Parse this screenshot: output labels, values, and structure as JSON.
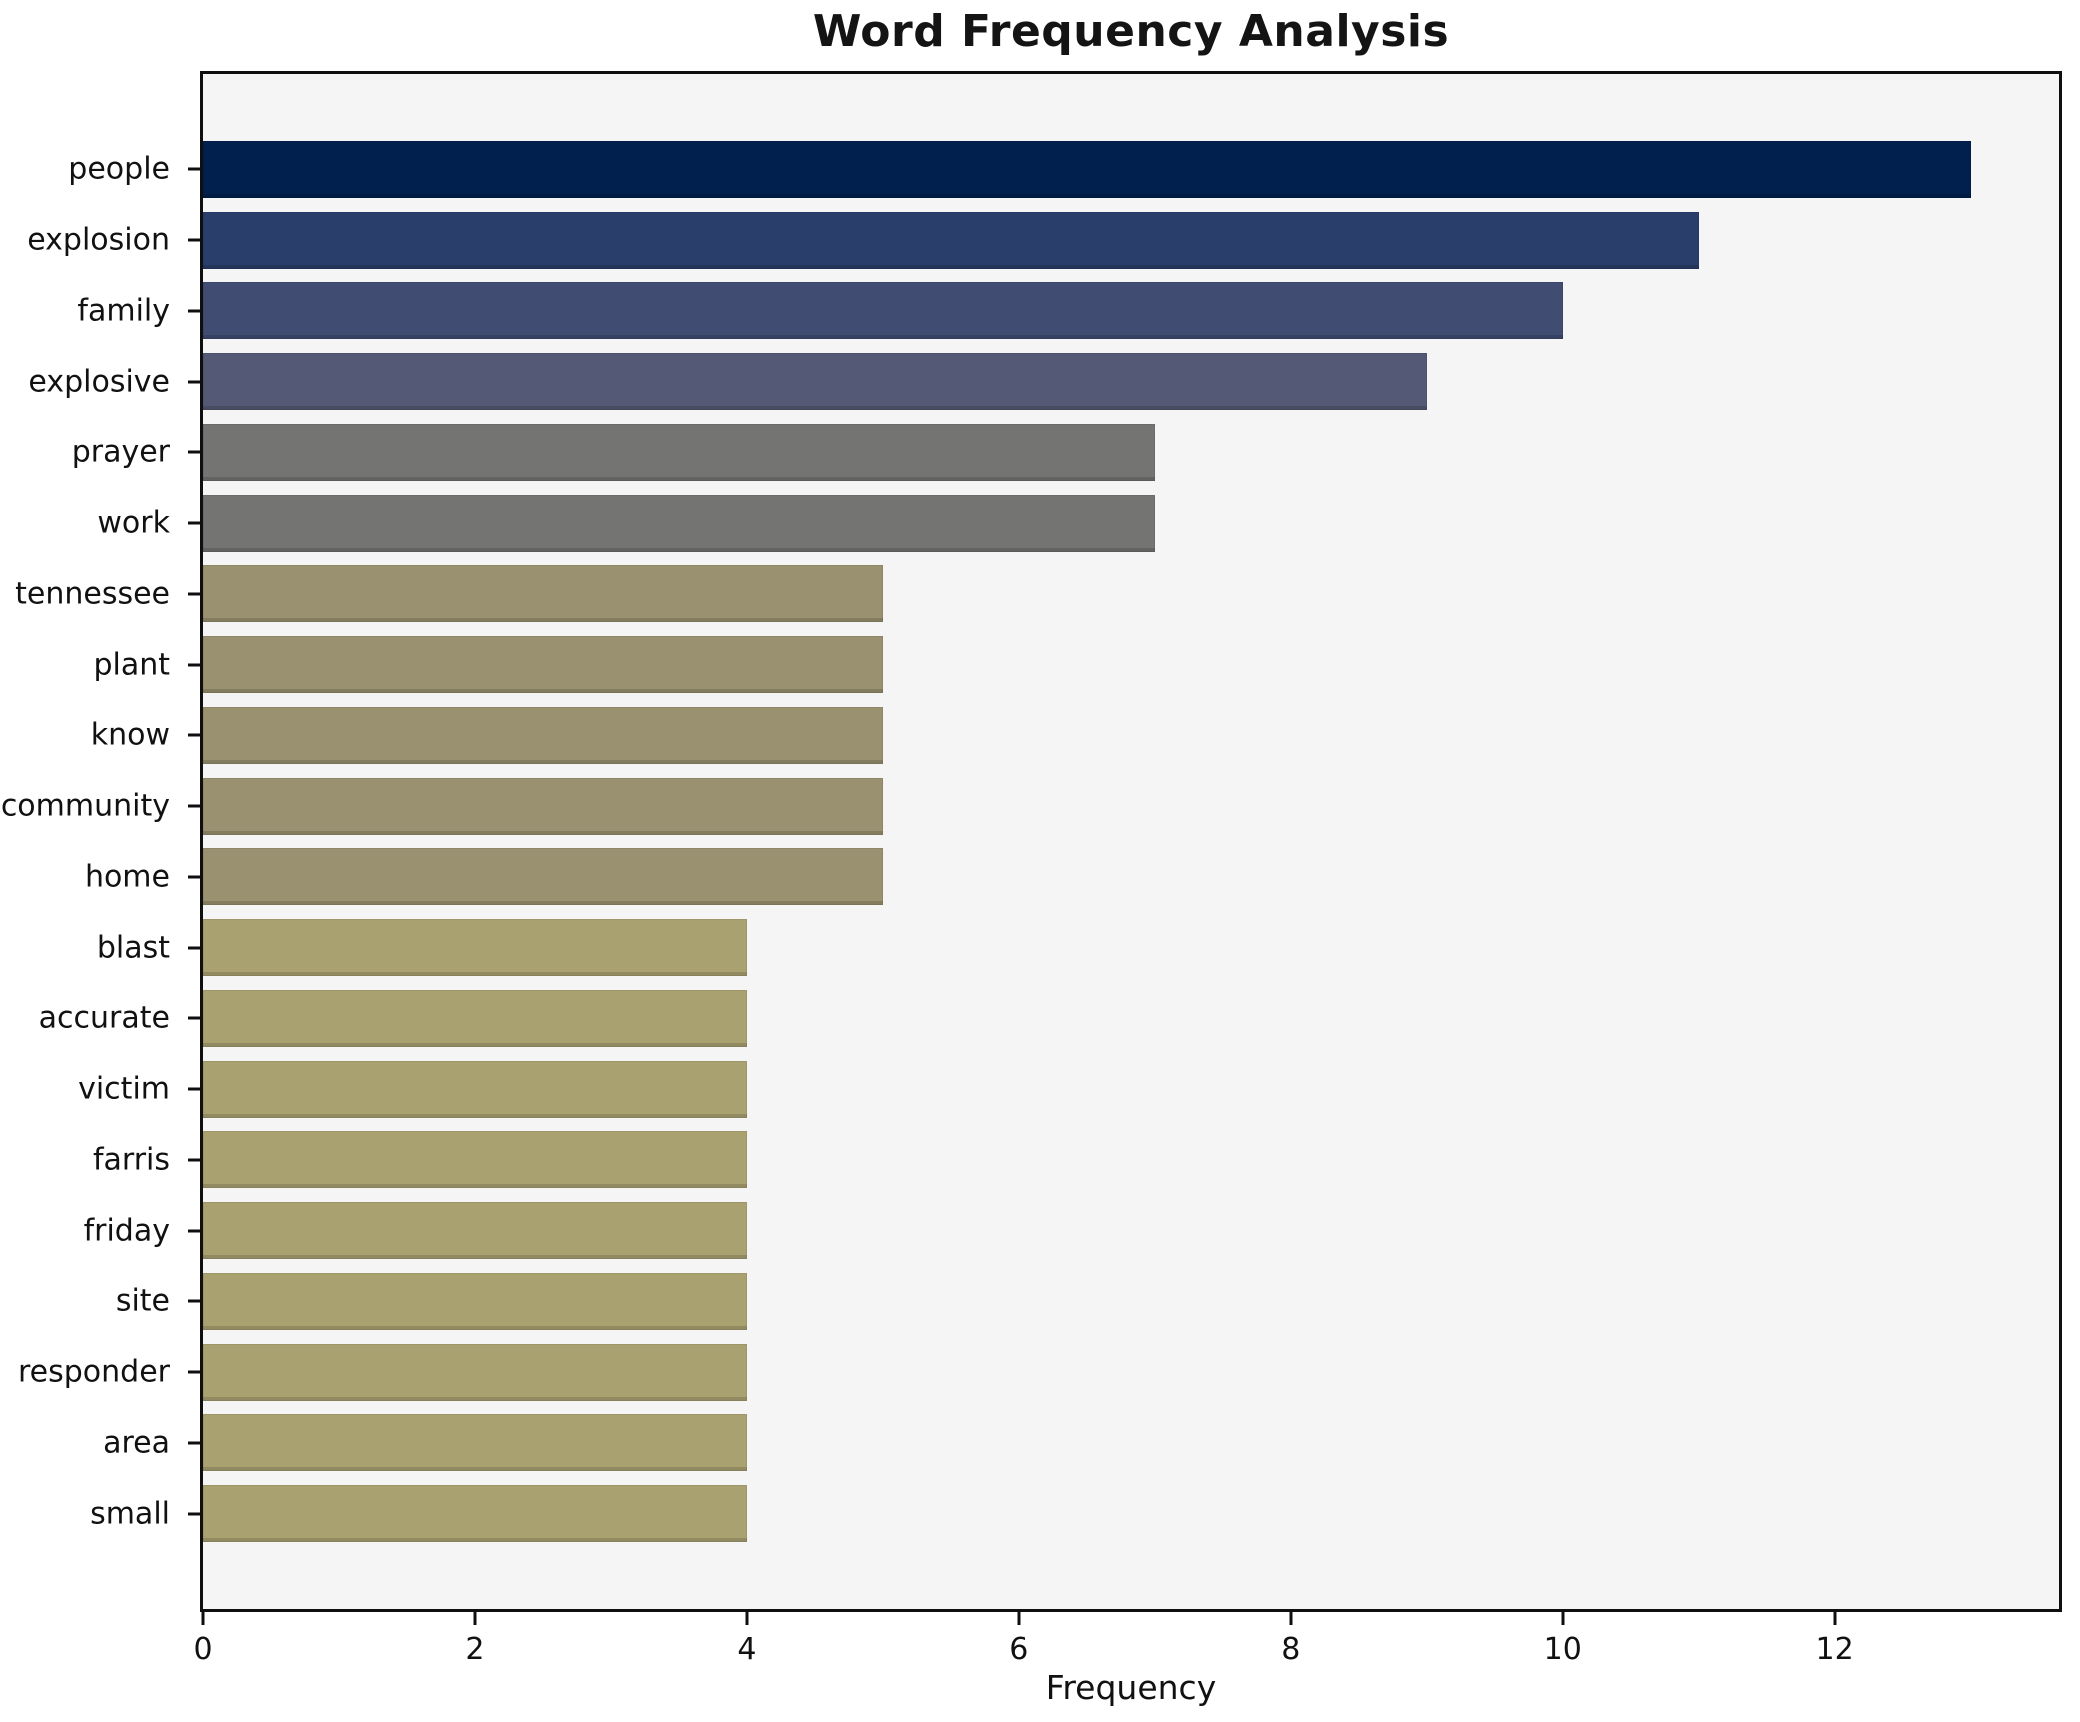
{
  "title": "Word Frequency Analysis",
  "xlabel": "Frequency",
  "colors": {
    "figure_background": "#ffffff",
    "plot_background": "#f5f5f6",
    "axis": "#0f0f0f",
    "text": "#111111"
  },
  "chart_data": {
    "type": "bar",
    "orientation": "horizontal",
    "title": "Word Frequency Analysis",
    "xlabel": "Frequency",
    "ylabel": "",
    "grid": false,
    "legend": null,
    "xlim": [
      0,
      13.65
    ],
    "xticks": [
      0,
      2,
      4,
      6,
      8,
      10,
      12
    ],
    "categories": [
      "people",
      "explosion",
      "family",
      "explosive",
      "prayer",
      "work",
      "tennessee",
      "plant",
      "know",
      "community",
      "home",
      "blast",
      "accurate",
      "victim",
      "farris",
      "friday",
      "site",
      "responder",
      "area",
      "small"
    ],
    "values": [
      13,
      11,
      10,
      9,
      7,
      7,
      5,
      5,
      5,
      5,
      5,
      4,
      4,
      4,
      4,
      4,
      4,
      4,
      4,
      4
    ],
    "bar_colors": [
      "#01204d",
      "#2a3e6c",
      "#414c72",
      "#545a75",
      "#747472",
      "#747472",
      "#99916f",
      "#99916f",
      "#99916f",
      "#99916f",
      "#99916f",
      "#aaa171",
      "#aaa171",
      "#aaa171",
      "#aaa171",
      "#aaa171",
      "#aaa171",
      "#aaa171",
      "#aaa171",
      "#aaa171"
    ]
  }
}
